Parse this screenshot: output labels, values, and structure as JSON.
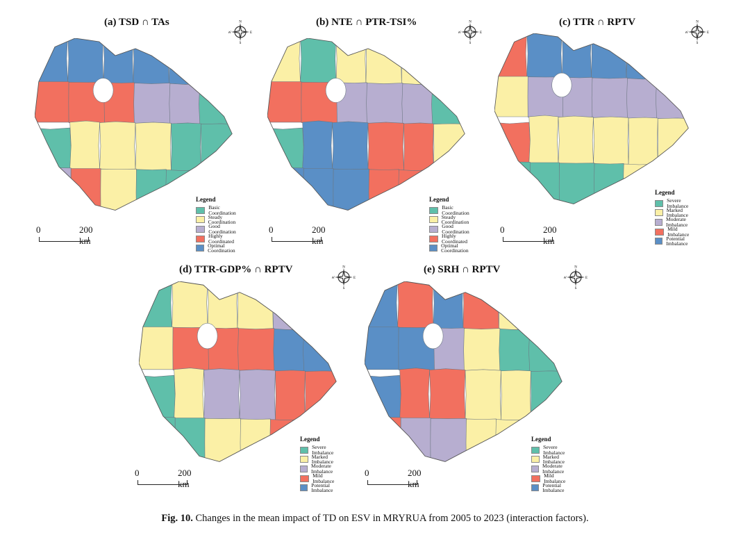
{
  "colors": {
    "teal": "#5fbfaa",
    "yellow": "#fbf0a6",
    "lavender": "#b7aed0",
    "red": "#f2705f",
    "blue": "#5a8fc6"
  },
  "compass": {
    "n": "N",
    "s": "S",
    "e": "E",
    "w": "W",
    "icon": "compass-rose-icon"
  },
  "scale": {
    "zero": "0",
    "dist": "200 km"
  },
  "legend_title": "Legend",
  "coordination_legend": [
    {
      "label": "Basic Coordination",
      "color": "#5fbfaa"
    },
    {
      "label": "Steady Coordination",
      "color": "#fbf0a6"
    },
    {
      "label": "Good Coordination",
      "color": "#b7aed0"
    },
    {
      "label": "Highly Coordinated",
      "color": "#f2705f"
    },
    {
      "label": "Optimal Coordination",
      "color": "#5a8fc6"
    }
  ],
  "imbalance_legend": [
    {
      "label": "Severe Imbalance",
      "color": "#5fbfaa"
    },
    {
      "label": "Marked Imbalance",
      "color": "#fbf0a6"
    },
    {
      "label": "Moderate Imbalance",
      "color": "#b7aed0"
    },
    {
      "label": "Mild Imbalance",
      "color": "#f2705f"
    },
    {
      "label": "Potential Imbalance",
      "color": "#5a8fc6"
    }
  ],
  "panels": [
    {
      "title": "(a) TSD ∩ TAs",
      "colors": [
        "blue",
        "blue",
        "blue",
        "blue",
        "blue",
        "blue",
        "red",
        "red",
        "red",
        "lavender",
        "lavender",
        "teal",
        "teal",
        "yellow",
        "yellow",
        "yellow",
        "teal",
        "teal",
        "lavender",
        "red",
        "yellow",
        "teal",
        "teal",
        "yellow"
      ]
    },
    {
      "title": "(b) NTE ∩ PTR-TSI%",
      "colors": [
        "yellow",
        "teal",
        "yellow",
        "yellow",
        "yellow",
        "yellow",
        "red",
        "red",
        "lavender",
        "lavender",
        "lavender",
        "teal",
        "teal",
        "blue",
        "blue",
        "red",
        "red",
        "yellow",
        "blue",
        "blue",
        "blue",
        "red",
        "red",
        "yellow"
      ]
    },
    {
      "title": "(c) TTR ∩ RPTV",
      "colors": [
        "red",
        "blue",
        "blue",
        "blue",
        "blue",
        "blue",
        "yellow",
        "lavender",
        "lavender",
        "lavender",
        "lavender",
        "lavender",
        "red",
        "yellow",
        "yellow",
        "yellow",
        "yellow",
        "yellow",
        "teal",
        "teal",
        "teal",
        "teal",
        "yellow",
        "yellow"
      ]
    },
    {
      "title": "(d) TTR-GDP% ∩ RPTV",
      "colors": [
        "teal",
        "yellow",
        "yellow",
        "yellow",
        "lavender",
        "lavender",
        "yellow",
        "red",
        "red",
        "red",
        "blue",
        "blue",
        "teal",
        "yellow",
        "lavender",
        "lavender",
        "red",
        "red",
        "teal",
        "teal",
        "yellow",
        "yellow",
        "red",
        "red"
      ]
    },
    {
      "title": "(e) SRH ∩ RPTV",
      "colors": [
        "blue",
        "red",
        "blue",
        "red",
        "yellow",
        "yellow",
        "blue",
        "blue",
        "lavender",
        "yellow",
        "teal",
        "teal",
        "blue",
        "red",
        "red",
        "yellow",
        "yellow",
        "teal",
        "red",
        "lavender",
        "lavender",
        "yellow",
        "yellow",
        "teal"
      ]
    }
  ],
  "caption": {
    "label": "Fig. 10.",
    "text": "Changes in the mean impact of TD on ESV in MRYRUA from 2005 to 2023 (interaction factors)."
  }
}
